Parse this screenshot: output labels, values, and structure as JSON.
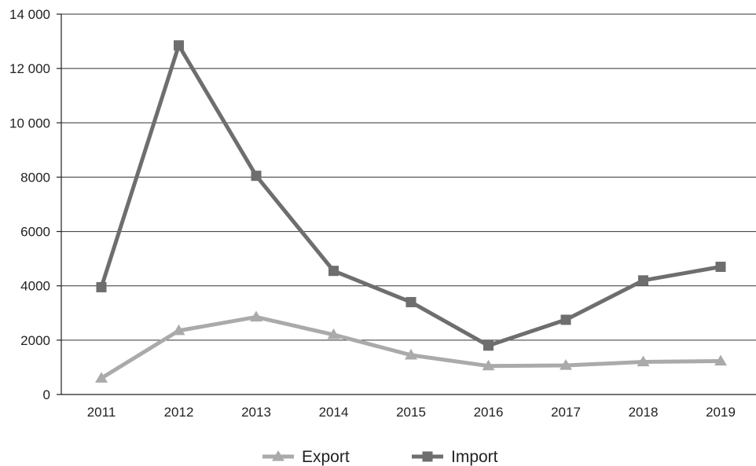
{
  "chart_data": {
    "type": "line",
    "title": "",
    "xlabel": "",
    "ylabel": "",
    "categories": [
      "2011",
      "2012",
      "2013",
      "2014",
      "2015",
      "2016",
      "2017",
      "2018",
      "2019"
    ],
    "ylim": [
      0,
      14000
    ],
    "yticks": [
      0,
      2000,
      4000,
      6000,
      8000,
      10000,
      12000,
      14000
    ],
    "ytick_labels": [
      "0",
      "2000",
      "4000",
      "6000",
      "8000",
      "10 000",
      "12 000",
      "14 000"
    ],
    "grid": true,
    "legend_position": "bottom",
    "series": [
      {
        "name": "Export",
        "marker": "triangle",
        "color": "#aaaaaa",
        "values": [
          600,
          2350,
          2850,
          2200,
          1450,
          1050,
          1070,
          1200,
          1230
        ]
      },
      {
        "name": "Import",
        "marker": "square",
        "color": "#6e6e6e",
        "values": [
          3950,
          12850,
          8050,
          4550,
          3400,
          1800,
          2750,
          4200,
          4700
        ]
      }
    ]
  }
}
